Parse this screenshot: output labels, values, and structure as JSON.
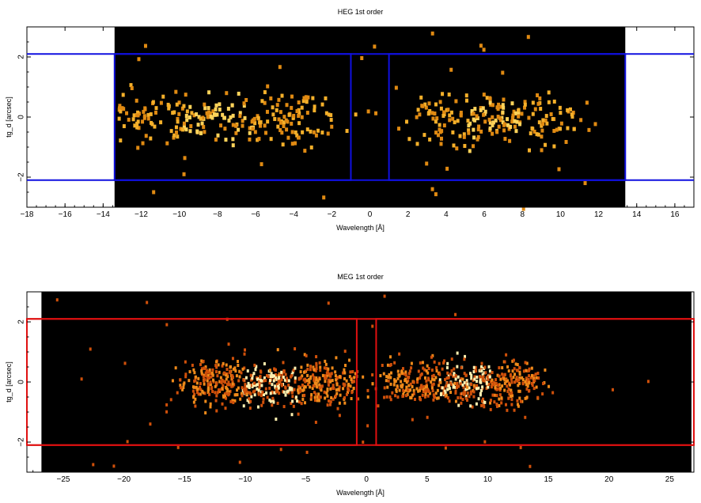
{
  "chart_data": [
    {
      "type": "heatmap",
      "title": "HEG 1st order",
      "xlabel": "Wavelength [Å]",
      "ylabel": "tg_d [arcsec]",
      "xlim": [
        -18,
        17
      ],
      "ylim": [
        -3,
        3
      ],
      "xticks": [
        -18,
        -16,
        -14,
        -12,
        -10,
        -8,
        -6,
        -4,
        -2,
        0,
        2,
        4,
        6,
        8,
        10,
        12,
        14,
        16
      ],
      "yticks": [
        -2,
        0,
        2
      ],
      "image_extent_x": [
        -13.4,
        13.4
      ],
      "image_background": "#000000",
      "count_colors": [
        "#e08a12",
        "#f5b02a",
        "#ffd35a"
      ],
      "region_color": "#1010e0",
      "regions": [
        {
          "name": "minus-order",
          "x": [
            -13.4,
            -1.0
          ],
          "y": [
            -2.1,
            2.1
          ]
        },
        {
          "name": "plus-order",
          "x": [
            1.0,
            13.4
          ],
          "y": [
            -2.1,
            2.1
          ]
        }
      ],
      "boundary_lines_y": [
        -2.1,
        2.1
      ],
      "clusters": [
        {
          "center": -8.0,
          "width": 10.5,
          "count": 260
        },
        {
          "center": 6.5,
          "width": 8.0,
          "count": 200
        }
      ],
      "y_spread": 0.75
    },
    {
      "type": "heatmap",
      "title": "MEG 1st order",
      "xlabel": "Wavelength [Å]",
      "ylabel": "tg_d [arcsec]",
      "xlim": [
        -28,
        27
      ],
      "ylim": [
        -3,
        3
      ],
      "xticks": [
        -25,
        -20,
        -15,
        -10,
        -5,
        0,
        5,
        10,
        15,
        20,
        25
      ],
      "yticks": [
        -2,
        0,
        2
      ],
      "image_extent_x": [
        -26.8,
        26.8
      ],
      "image_background": "#000000",
      "count_colors": [
        "#d0500a",
        "#f08a1a",
        "#ffc040",
        "#fff0b0"
      ],
      "region_color": "#e01010",
      "regions": [
        {
          "name": "minus-order",
          "x": [
            -28,
            -0.8
          ],
          "y": [
            -2.1,
            2.1
          ]
        },
        {
          "name": "plus-order",
          "x": [
            0.8,
            27
          ],
          "y": [
            -2.1,
            2.1
          ]
        }
      ],
      "boundary_lines_y": [
        -2.1,
        2.1
      ],
      "clusters": [
        {
          "center": -8.0,
          "width": 13.0,
          "count": 620
        },
        {
          "center": 8.0,
          "width": 12.0,
          "count": 520
        }
      ],
      "y_spread": 0.7
    }
  ]
}
